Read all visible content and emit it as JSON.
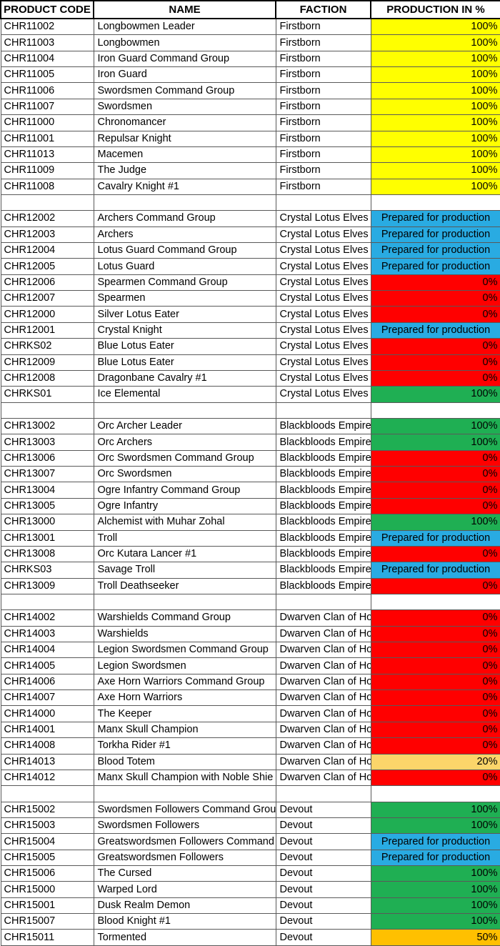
{
  "columns": [
    {
      "label": "PRODUCT CODE"
    },
    {
      "label": "NAME"
    },
    {
      "label": "FACTION"
    },
    {
      "label": "PRODUCTION IN %"
    }
  ],
  "status_colors": {
    "yellow": "#FFFF00",
    "red": "#FF0000",
    "green": "#1FAF53",
    "blue": "#29ABE2",
    "gold": "#FBD56A",
    "orange": "#FFC000"
  },
  "rows": [
    {
      "code": "CHR11002",
      "name": "Longbowmen Leader",
      "faction": "Firstborn",
      "status": "100%",
      "fill": "yellow"
    },
    {
      "code": "CHR11003",
      "name": "Longbowmen",
      "faction": "Firstborn",
      "status": "100%",
      "fill": "yellow"
    },
    {
      "code": "CHR11004",
      "name": "Iron Guard Command Group",
      "faction": "Firstborn",
      "status": "100%",
      "fill": "yellow"
    },
    {
      "code": "CHR11005",
      "name": "Iron Guard",
      "faction": "Firstborn",
      "status": "100%",
      "fill": "yellow"
    },
    {
      "code": "CHR11006",
      "name": "Swordsmen Command Group",
      "faction": "Firstborn",
      "status": "100%",
      "fill": "yellow"
    },
    {
      "code": "CHR11007",
      "name": "Swordsmen",
      "faction": "Firstborn",
      "status": "100%",
      "fill": "yellow"
    },
    {
      "code": "CHR11000",
      "name": "Chronomancer",
      "faction": "Firstborn",
      "status": "100%",
      "fill": "yellow"
    },
    {
      "code": "CHR11001",
      "name": "Repulsar Knight",
      "faction": "Firstborn",
      "status": "100%",
      "fill": "yellow"
    },
    {
      "code": "CHR11013",
      "name": "Macemen",
      "faction": "Firstborn",
      "status": "100%",
      "fill": "yellow"
    },
    {
      "code": "CHR11009",
      "name": "The Judge",
      "faction": "Firstborn",
      "status": "100%",
      "fill": "yellow"
    },
    {
      "code": "CHR11008",
      "name": "Cavalry Knight #1",
      "faction": "Firstborn",
      "status": "100%",
      "fill": "yellow"
    },
    {
      "blank": true
    },
    {
      "code": "CHR12002",
      "name": "Archers Command Group",
      "faction": "Crystal Lotus Elves",
      "status": "Prepared for production",
      "fill": "blue"
    },
    {
      "code": "CHR12003",
      "name": "Archers",
      "faction": "Crystal Lotus Elves",
      "status": "Prepared for production",
      "fill": "blue"
    },
    {
      "code": "CHR12004",
      "name": "Lotus Guard Command Group",
      "faction": "Crystal Lotus Elves",
      "status": "Prepared for production",
      "fill": "blue"
    },
    {
      "code": "CHR12005",
      "name": "Lotus Guard",
      "faction": "Crystal Lotus Elves",
      "status": "Prepared for production",
      "fill": "blue"
    },
    {
      "code": "CHR12006",
      "name": "Spearmen Command Group",
      "faction": "Crystal Lotus Elves",
      "status": "0%",
      "fill": "red"
    },
    {
      "code": "CHR12007",
      "name": "Spearmen",
      "faction": "Crystal Lotus Elves",
      "status": "0%",
      "fill": "red"
    },
    {
      "code": "CHR12000",
      "name": "Silver Lotus Eater",
      "faction": "Crystal Lotus Elves",
      "status": "0%",
      "fill": "red"
    },
    {
      "code": "CHR12001",
      "name": "Crystal Knight",
      "faction": "Crystal Lotus Elves",
      "status": "Prepared for production",
      "fill": "blue"
    },
    {
      "code": "CHRKS02",
      "name": "Blue Lotus Eater",
      "faction": "Crystal Lotus Elves",
      "status": "0%",
      "fill": "red"
    },
    {
      "code": "CHR12009",
      "name": "Blue Lotus Eater",
      "faction": "Crystal Lotus Elves",
      "status": "0%",
      "fill": "red"
    },
    {
      "code": "CHR12008",
      "name": "Dragonbane Cavalry #1",
      "faction": "Crystal Lotus Elves",
      "status": "0%",
      "fill": "red"
    },
    {
      "code": "CHRKS01",
      "name": "Ice Elemental",
      "faction": "Crystal Lotus Elves",
      "status": "100%",
      "fill": "green"
    },
    {
      "blank": true
    },
    {
      "code": "CHR13002",
      "name": "Orc Archer Leader",
      "faction": "Blackbloods Empire",
      "status": "100%",
      "fill": "green"
    },
    {
      "code": "CHR13003",
      "name": "Orc Archers",
      "faction": "Blackbloods Empire",
      "status": "100%",
      "fill": "green"
    },
    {
      "code": "CHR13006",
      "name": "Orc Swordsmen Command Group",
      "faction": "Blackbloods Empire",
      "status": "0%",
      "fill": "red"
    },
    {
      "code": "CHR13007",
      "name": "Orc Swordsmen",
      "faction": "Blackbloods Empire",
      "status": "0%",
      "fill": "red"
    },
    {
      "code": "CHR13004",
      "name": "Ogre Infantry Command Group",
      "faction": "Blackbloods Empire",
      "status": "0%",
      "fill": "red"
    },
    {
      "code": "CHR13005",
      "name": "Ogre Infantry",
      "faction": "Blackbloods Empire",
      "status": "0%",
      "fill": "red"
    },
    {
      "code": "CHR13000",
      "name": "Alchemist with Muhar Zohal",
      "faction": "Blackbloods Empire",
      "status": "100%",
      "fill": "green"
    },
    {
      "code": "CHR13001",
      "name": "Troll",
      "faction": "Blackbloods Empire",
      "status": "Prepared for production",
      "fill": "blue"
    },
    {
      "code": "CHR13008",
      "name": "Orc Kutara Lancer #1",
      "faction": "Blackbloods Empire",
      "status": "0%",
      "fill": "red"
    },
    {
      "code": "CHRKS03",
      "name": "Savage Troll",
      "faction": "Blackbloods Empire",
      "status": "Prepared for production",
      "fill": "blue"
    },
    {
      "code": "CHR13009",
      "name": "Troll Deathseeker",
      "faction": "Blackbloods Empire",
      "status": "0%",
      "fill": "red"
    },
    {
      "blank": true
    },
    {
      "code": "CHR14002",
      "name": "Warshields Command Group",
      "faction": "Dwarven Clan of Ho",
      "status": "0%",
      "fill": "red"
    },
    {
      "code": "CHR14003",
      "name": "Warshields",
      "faction": "Dwarven Clan of Ho",
      "status": "0%",
      "fill": "red"
    },
    {
      "code": "CHR14004",
      "name": "Legion Swordsmen Command Group",
      "faction": "Dwarven Clan of Ho",
      "status": "0%",
      "fill": "red"
    },
    {
      "code": "CHR14005",
      "name": "Legion Swordsmen",
      "faction": "Dwarven Clan of Ho",
      "status": "0%",
      "fill": "red"
    },
    {
      "code": "CHR14006",
      "name": "Axe Horn Warriors Command Group",
      "faction": "Dwarven Clan of Ho",
      "status": "0%",
      "fill": "red"
    },
    {
      "code": "CHR14007",
      "name": "Axe Horn Warriors",
      "faction": "Dwarven Clan of Ho",
      "status": "0%",
      "fill": "red"
    },
    {
      "code": "CHR14000",
      "name": "The Keeper",
      "faction": "Dwarven Clan of Ho",
      "status": "0%",
      "fill": "red"
    },
    {
      "code": "CHR14001",
      "name": "Manx Skull Champion",
      "faction": "Dwarven Clan of Ho",
      "status": "0%",
      "fill": "red"
    },
    {
      "code": "CHR14008",
      "name": "Torkha Rider #1",
      "faction": "Dwarven Clan of Ho",
      "status": "0%",
      "fill": "red"
    },
    {
      "code": "CHR14013",
      "name": "Blood Totem",
      "faction": "Dwarven Clan of Ho",
      "status": "20%",
      "fill": "gold"
    },
    {
      "code": "CHR14012",
      "name": "Manx Skull Champion with Noble Shie",
      "faction": "Dwarven Clan of Ho",
      "status": "0%",
      "fill": "red"
    },
    {
      "blank": true
    },
    {
      "code": "CHR15002",
      "name": "Swordsmen Followers Command Grou",
      "faction": "Devout",
      "status": "100%",
      "fill": "green"
    },
    {
      "code": "CHR15003",
      "name": "Swordsmen Followers",
      "faction": "Devout",
      "status": "100%",
      "fill": "green"
    },
    {
      "code": "CHR15004",
      "name": "Greatswordsmen Followers Command",
      "faction": "Devout",
      "status": "Prepared for production",
      "fill": "blue"
    },
    {
      "code": "CHR15005",
      "name": "Greatswordsmen Followers",
      "faction": "Devout",
      "status": "Prepared for production",
      "fill": "blue"
    },
    {
      "code": "CHR15006",
      "name": "The Cursed",
      "faction": "Devout",
      "status": "100%",
      "fill": "green"
    },
    {
      "code": "CHR15000",
      "name": "Warped Lord",
      "faction": "Devout",
      "status": "100%",
      "fill": "green"
    },
    {
      "code": "CHR15001",
      "name": "Dusk Realm Demon",
      "faction": "Devout",
      "status": "100%",
      "fill": "green"
    },
    {
      "code": "CHR15007",
      "name": "Blood Knight #1",
      "faction": "Devout",
      "status": "100%",
      "fill": "green"
    },
    {
      "code": "CHR15011",
      "name": "Tormented",
      "faction": "Devout",
      "status": "50%",
      "fill": "orange"
    }
  ]
}
